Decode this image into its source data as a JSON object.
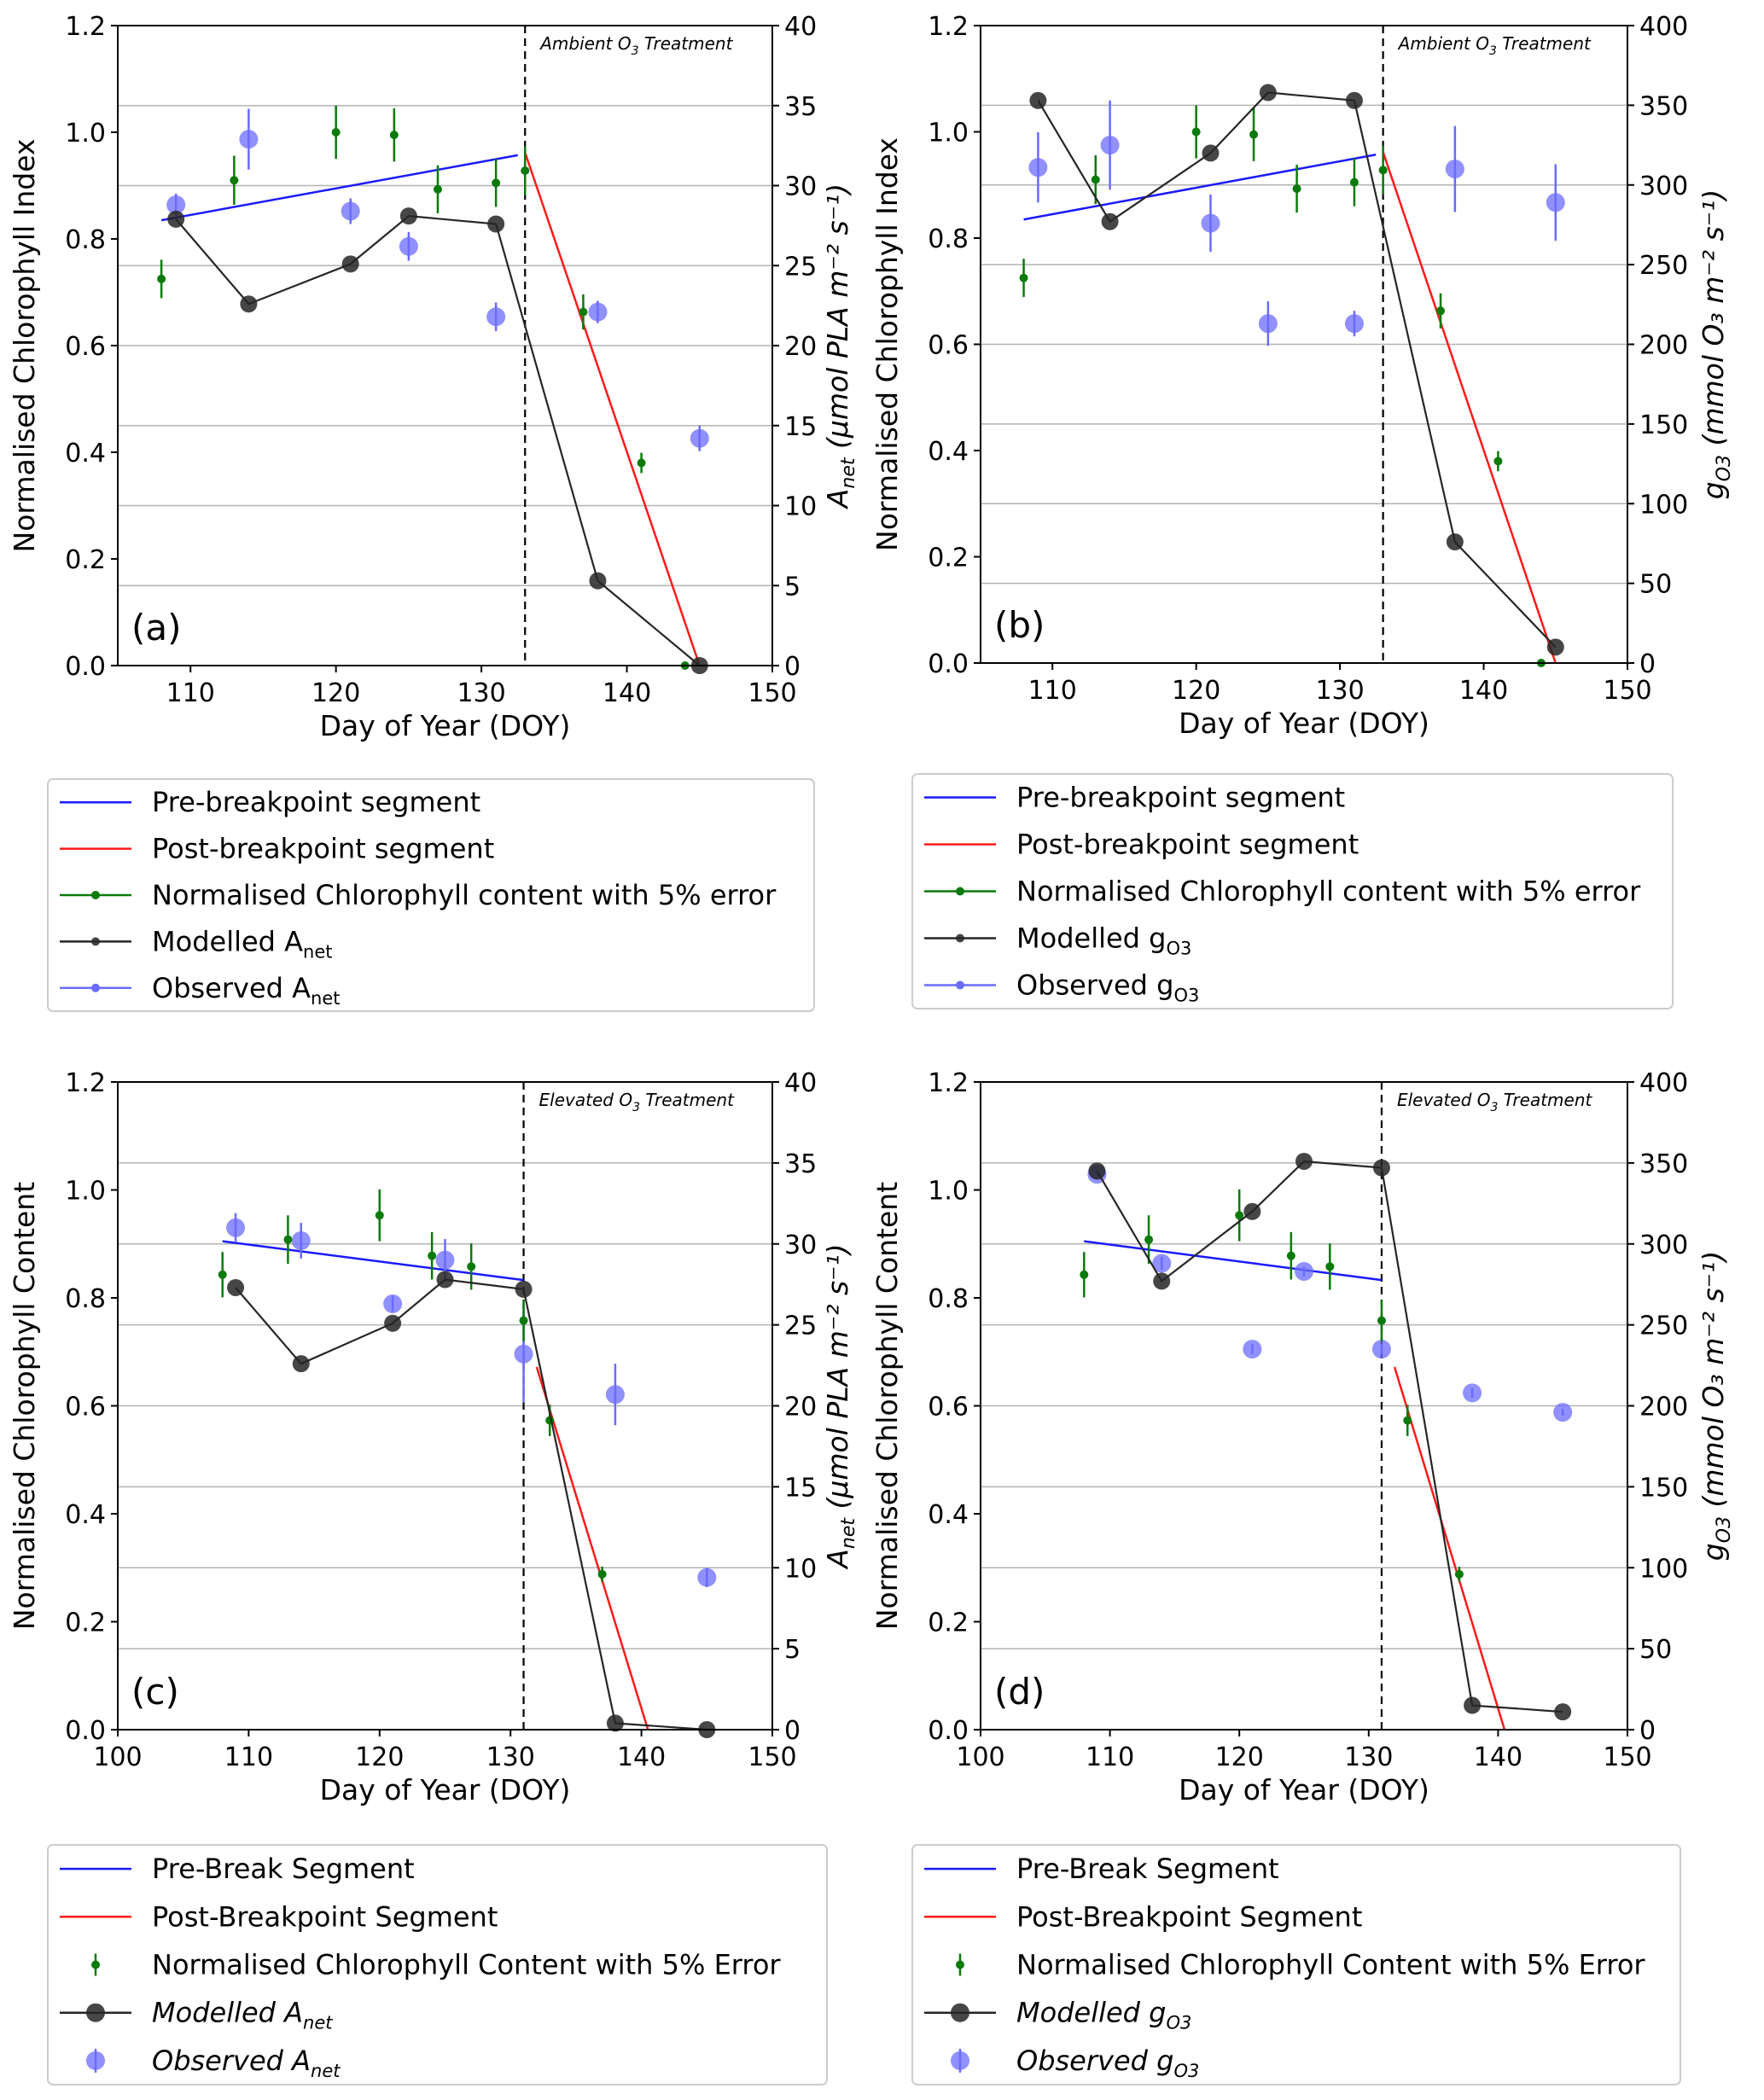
{
  "chart_data": [
    {
      "id": "a",
      "type": "line",
      "panel_label": "(a)",
      "treatment_label": "Ambient O",
      "treatment_sub": "3",
      "treatment_suffix": " Treatment",
      "xlabel": "Day of Year (DOY)",
      "ylabel_left": "Normalised Chlorophyll Index",
      "ylabel_right": "A",
      "ylabel_right_sub": "net",
      "ylabel_right_unit": " (μmol PLA m⁻² s⁻¹)",
      "xlim": [
        105,
        150
      ],
      "xticks": [
        110,
        120,
        130,
        140,
        150
      ],
      "ylim_left": [
        0,
        1.2
      ],
      "yticks_left": [
        "0.0",
        "0.2",
        "0.4",
        "0.6",
        "0.8",
        "1.0",
        "1.2"
      ],
      "ylim_right": [
        0,
        40
      ],
      "yticks_right": [
        "0",
        "5",
        "10",
        "15",
        "20",
        "25",
        "30",
        "35",
        "40"
      ],
      "breakpoint": 133,
      "pre_segment": {
        "x": [
          108,
          132.5
        ],
        "y": [
          0.835,
          0.957
        ]
      },
      "post_segment": {
        "x": [
          133,
          145
        ],
        "y": [
          0.962,
          0.0
        ]
      },
      "chlorophyll": {
        "x": [
          108,
          113,
          120,
          124,
          127,
          131,
          133,
          137,
          141,
          144
        ],
        "y": [
          0.725,
          0.91,
          1.0,
          0.995,
          0.893,
          0.905,
          0.928,
          0.663,
          0.38,
          0.0
        ],
        "err": [
          0.036,
          0.046,
          0.05,
          0.05,
          0.045,
          0.045,
          0.046,
          0.033,
          0.019,
          0.0
        ]
      },
      "modelled": {
        "x": [
          109,
          114,
          121,
          125,
          131,
          138,
          145
        ],
        "y": [
          27.9,
          22.6,
          25.1,
          28.1,
          27.6,
          5.3,
          0.0
        ]
      },
      "observed": {
        "x": [
          109,
          114,
          121,
          125,
          131,
          138,
          145
        ],
        "y": [
          28.8,
          32.9,
          28.4,
          26.2,
          21.8,
          22.1,
          14.2
        ],
        "err": [
          0.7,
          1.9,
          0.8,
          0.9,
          0.9,
          0.7,
          0.8
        ]
      },
      "legend_style": "small",
      "legend": [
        {
          "label": "Pre-breakpoint segment",
          "sub": "",
          "italic": false
        },
        {
          "label": "Post-breakpoint segment",
          "sub": "",
          "italic": false
        },
        {
          "label": "Normalised Chlorophyll content with 5% error",
          "sub": "",
          "italic": false
        },
        {
          "label": "Modelled A",
          "sub": "net",
          "italic": false
        },
        {
          "label": "Observed A",
          "sub": "net",
          "italic": false
        }
      ]
    },
    {
      "id": "b",
      "type": "line",
      "panel_label": "(b)",
      "treatment_label": "Ambient O",
      "treatment_sub": "3",
      "treatment_suffix": " Treatment",
      "xlabel": "Day of Year (DOY)",
      "ylabel_left": "Normalised Chlorophyll Index",
      "ylabel_right": "g",
      "ylabel_right_sub": "O3",
      "ylabel_right_unit": " (mmol O₃ m⁻² s⁻¹)",
      "xlim": [
        105,
        150
      ],
      "xticks": [
        110,
        120,
        130,
        140,
        150
      ],
      "ylim_left": [
        0,
        1.2
      ],
      "yticks_left": [
        "0.0",
        "0.2",
        "0.4",
        "0.6",
        "0.8",
        "1.0",
        "1.2"
      ],
      "ylim_right": [
        0,
        400
      ],
      "yticks_right": [
        "0",
        "50",
        "100",
        "150",
        "200",
        "250",
        "300",
        "350",
        "400"
      ],
      "breakpoint": 133,
      "pre_segment": {
        "x": [
          108,
          132.5
        ],
        "y": [
          0.835,
          0.957
        ]
      },
      "post_segment": {
        "x": [
          133,
          145
        ],
        "y": [
          0.962,
          0.0
        ]
      },
      "chlorophyll": {
        "x": [
          108,
          113,
          120,
          124,
          127,
          131,
          133,
          137,
          141,
          144
        ],
        "y": [
          0.725,
          0.91,
          1.0,
          0.995,
          0.893,
          0.905,
          0.928,
          0.663,
          0.38,
          0.0
        ],
        "err": [
          0.036,
          0.046,
          0.05,
          0.05,
          0.045,
          0.045,
          0.046,
          0.033,
          0.019,
          0.0
        ]
      },
      "modelled": {
        "x": [
          109,
          114,
          121,
          125,
          131,
          138,
          145
        ],
        "y": [
          353,
          277,
          320,
          358,
          353,
          76,
          10
        ]
      },
      "observed": {
        "x": [
          109,
          114,
          121,
          125,
          131,
          138,
          145
        ],
        "y": [
          311,
          325,
          276,
          213,
          213,
          310,
          289
        ],
        "err": [
          22,
          28,
          18,
          14,
          8,
          27,
          24
        ]
      },
      "legend_style": "small",
      "legend": [
        {
          "label": "Pre-breakpoint segment",
          "sub": "",
          "italic": false
        },
        {
          "label": "Post-breakpoint segment",
          "sub": "",
          "italic": false
        },
        {
          "label": "Normalised Chlorophyll content with 5% error",
          "sub": "",
          "italic": false
        },
        {
          "label": "Modelled g",
          "sub": "O3",
          "italic": false
        },
        {
          "label": "Observed g",
          "sub": "O3",
          "italic": false
        }
      ]
    },
    {
      "id": "c",
      "type": "line",
      "panel_label": "(c)",
      "treatment_label": "Elevated O",
      "treatment_sub": "3",
      "treatment_suffix": " Treatment",
      "xlabel": "Day of Year (DOY)",
      "ylabel_left": "Normalised Chlorophyll Content",
      "ylabel_right": "A",
      "ylabel_right_sub": "net",
      "ylabel_right_unit": " (μmol PLA m⁻² s⁻¹)",
      "xlim": [
        100,
        150
      ],
      "xticks": [
        100,
        110,
        120,
        130,
        140,
        150
      ],
      "ylim_left": [
        0,
        1.2
      ],
      "yticks_left": [
        "0.0",
        "0.2",
        "0.4",
        "0.6",
        "0.8",
        "1.0",
        "1.2"
      ],
      "ylim_right": [
        0,
        40
      ],
      "yticks_right": [
        "0",
        "5",
        "10",
        "15",
        "20",
        "25",
        "30",
        "35",
        "40"
      ],
      "breakpoint": 131,
      "pre_segment": {
        "x": [
          108,
          131
        ],
        "y": [
          0.905,
          0.833
        ]
      },
      "post_segment": {
        "x": [
          132,
          140.5
        ],
        "y": [
          0.672,
          0.0
        ]
      },
      "chlorophyll": {
        "x": [
          108,
          113,
          120,
          124,
          127,
          131,
          133,
          137
        ],
        "y": [
          0.843,
          0.908,
          0.953,
          0.878,
          0.858,
          0.758,
          0.573,
          0.288
        ],
        "err": [
          0.042,
          0.045,
          0.048,
          0.044,
          0.043,
          0.038,
          0.029,
          0.014
        ]
      },
      "modelled": {
        "x": [
          109,
          114,
          121,
          125,
          131,
          138,
          145
        ],
        "y": [
          27.3,
          22.6,
          25.1,
          27.8,
          27.2,
          0.4,
          0.0
        ]
      },
      "observed": {
        "x": [
          109,
          114,
          121,
          125,
          131,
          138,
          145
        ],
        "y": [
          31.0,
          30.2,
          26.3,
          29.0,
          23.2,
          20.7,
          9.4
        ],
        "err": [
          0.9,
          1.1,
          0.5,
          1.3,
          3.0,
          1.9,
          0.6
        ]
      },
      "legend_style": "large",
      "legend": [
        {
          "label": "Pre-Break Segment",
          "sub": "",
          "italic": false
        },
        {
          "label": "Post-Breakpoint Segment",
          "sub": "",
          "italic": false
        },
        {
          "label": "Normalised Chlorophyll Content with 5% Error",
          "sub": "",
          "italic": false
        },
        {
          "label": "Modelled A",
          "sub": "net",
          "italic": true
        },
        {
          "label": "Observed A",
          "sub": "net",
          "italic": true
        }
      ]
    },
    {
      "id": "d",
      "type": "line",
      "panel_label": "(d)",
      "treatment_label": "Elevated O",
      "treatment_sub": "3",
      "treatment_suffix": " Treatment",
      "xlabel": "Day of Year (DOY)",
      "ylabel_left": "Normalised Chlorophyll Content",
      "ylabel_right": "g",
      "ylabel_right_sub": "O3",
      "ylabel_right_unit": " (mmol O₃ m⁻² s⁻¹)",
      "xlim": [
        100,
        150
      ],
      "xticks": [
        100,
        110,
        120,
        130,
        140,
        150
      ],
      "ylim_left": [
        0,
        1.2
      ],
      "yticks_left": [
        "0.0",
        "0.2",
        "0.4",
        "0.6",
        "0.8",
        "1.0",
        "1.2"
      ],
      "ylim_right": [
        0,
        400
      ],
      "yticks_right": [
        "0",
        "50",
        "100",
        "150",
        "200",
        "250",
        "300",
        "350",
        "400"
      ],
      "breakpoint": 131,
      "pre_segment": {
        "x": [
          108,
          131
        ],
        "y": [
          0.905,
          0.833
        ]
      },
      "post_segment": {
        "x": [
          132,
          140.5
        ],
        "y": [
          0.672,
          0.0
        ]
      },
      "chlorophyll": {
        "x": [
          108,
          113,
          120,
          124,
          127,
          131,
          133,
          137
        ],
        "y": [
          0.843,
          0.908,
          0.953,
          0.878,
          0.858,
          0.758,
          0.573,
          0.288
        ],
        "err": [
          0.042,
          0.045,
          0.048,
          0.044,
          0.043,
          0.038,
          0.029,
          0.014
        ]
      },
      "modelled": {
        "x": [
          109,
          114,
          121,
          125,
          131,
          138,
          145
        ],
        "y": [
          345,
          277,
          320,
          351,
          347,
          15,
          11
        ]
      },
      "observed": {
        "x": [
          109,
          114,
          121,
          125,
          131,
          138,
          145
        ],
        "y": [
          343,
          288,
          235,
          283,
          235,
          208,
          196
        ],
        "err": [
          2,
          4,
          3,
          3,
          3,
          3,
          2
        ]
      },
      "legend_style": "large",
      "legend": [
        {
          "label": "Pre-Break Segment",
          "sub": "",
          "italic": false
        },
        {
          "label": "Post-Breakpoint Segment",
          "sub": "",
          "italic": false
        },
        {
          "label": "Normalised Chlorophyll Content with 5% Error",
          "sub": "",
          "italic": false
        },
        {
          "label": "Modelled g",
          "sub": "O3",
          "italic": true
        },
        {
          "label": "Observed g",
          "sub": "O3",
          "italic": true
        }
      ]
    }
  ],
  "colors": {
    "pre_segment": "#1a1aff",
    "post_segment": "#ff1a1a",
    "chlorophyll": "#0a7a0a",
    "modelled": "#262626",
    "observed": "#6b6bff",
    "grid": "#b3b3b3"
  }
}
